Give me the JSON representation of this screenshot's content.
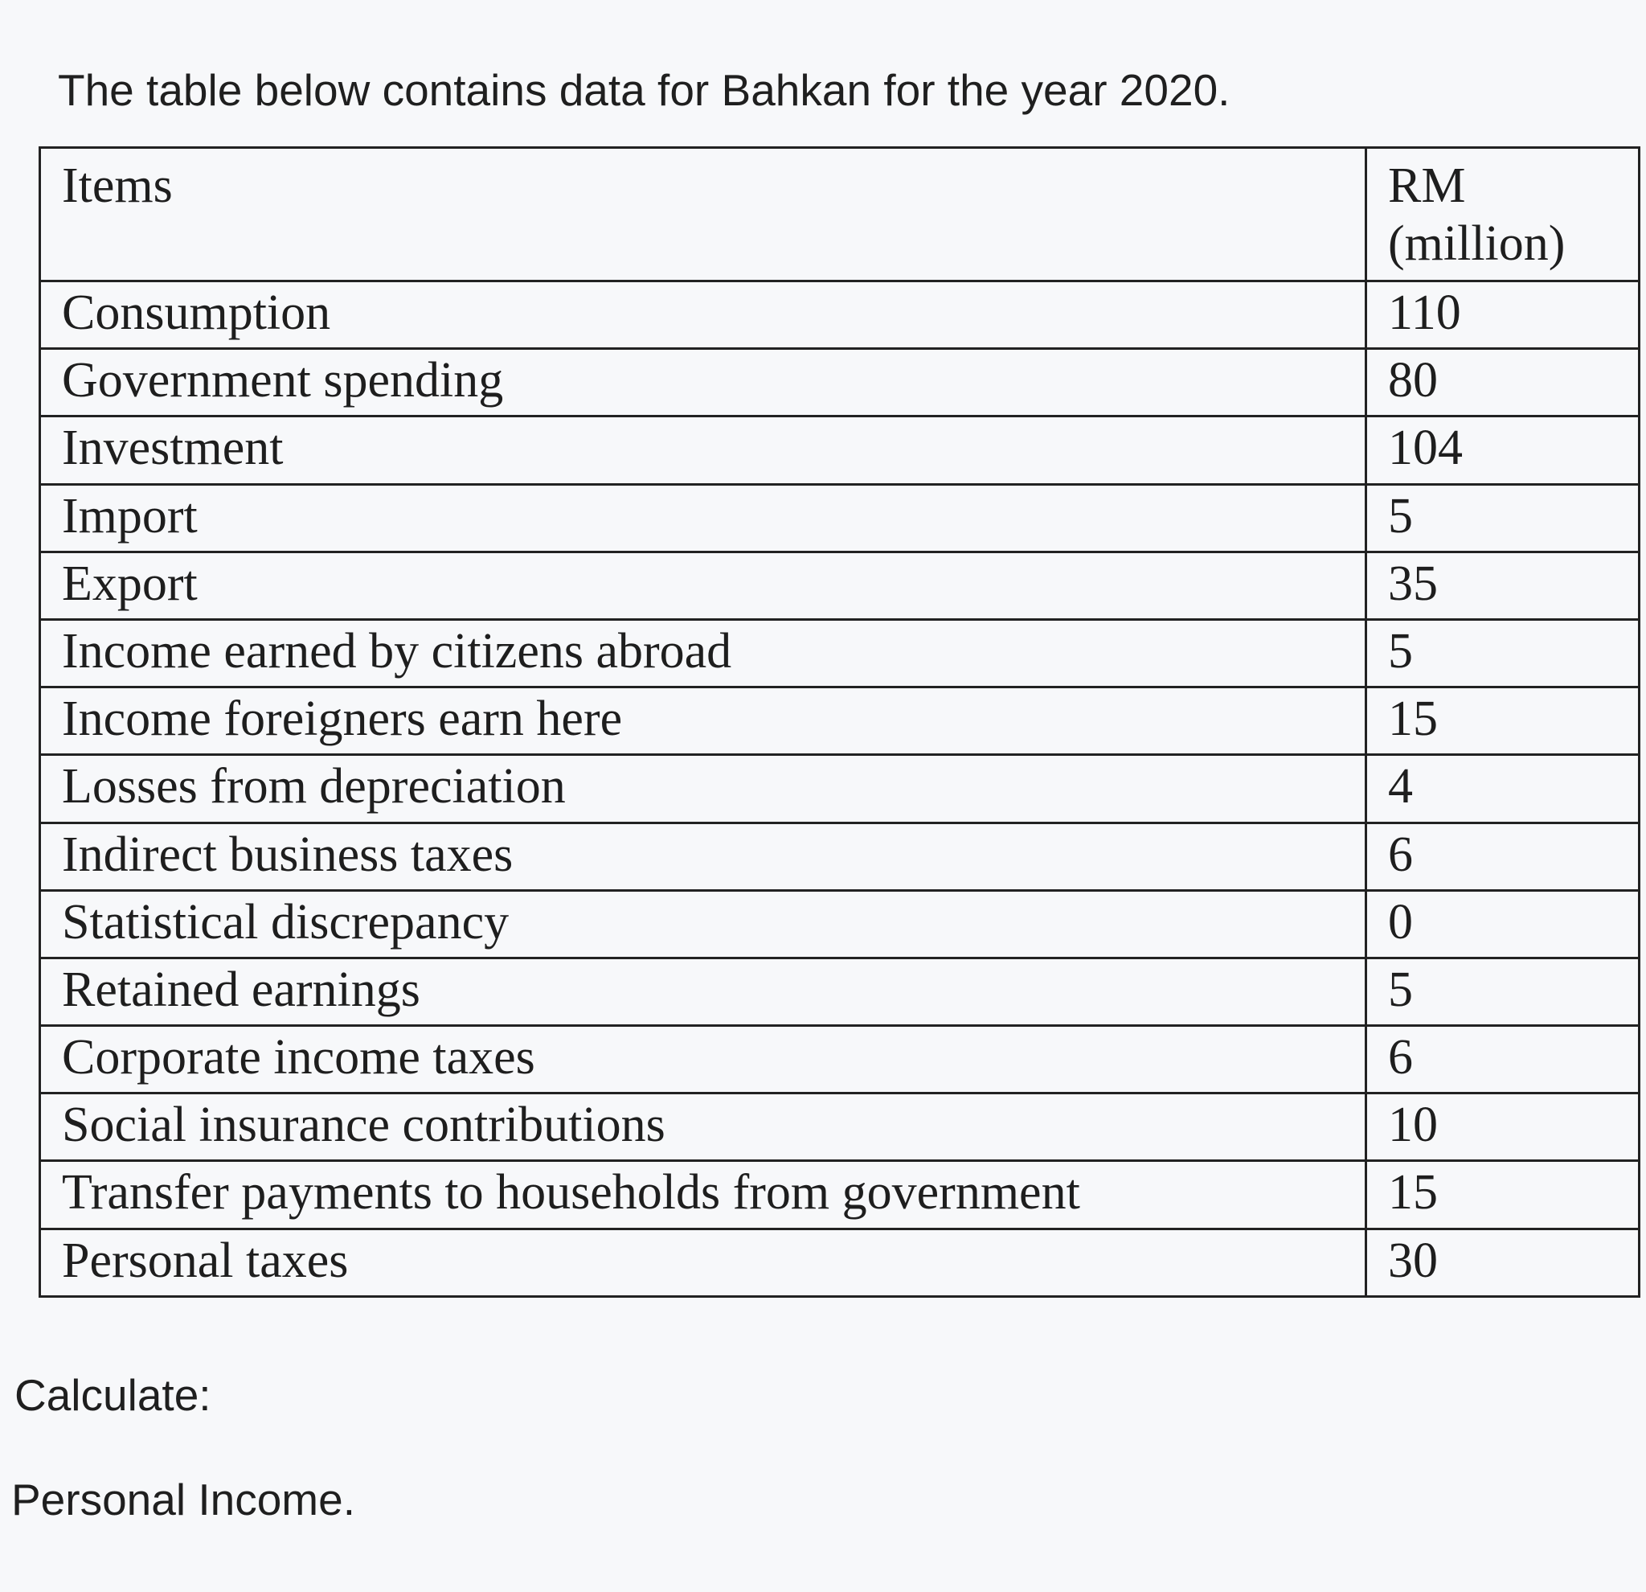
{
  "intro": "The table below contains data for Bahkan for the year 2020.",
  "table": {
    "header": {
      "item": "Items",
      "value_line1": "RM",
      "value_line2": "(million)"
    },
    "rows": [
      {
        "item": "Consumption",
        "value": "110"
      },
      {
        "item": "Government spending",
        "value": "80"
      },
      {
        "item": "Investment",
        "value": "104"
      },
      {
        "item": "Import",
        "value": "5"
      },
      {
        "item": "Export",
        "value": "35"
      },
      {
        "item": "Income earned by citizens abroad",
        "value": "5"
      },
      {
        "item": "Income foreigners earn here",
        "value": "15"
      },
      {
        "item": "Losses from depreciation",
        "value": "4"
      },
      {
        "item": "Indirect business taxes",
        "value": "6"
      },
      {
        "item": "Statistical discrepancy",
        "value": "0"
      },
      {
        "item": "Retained earnings",
        "value": "5"
      },
      {
        "item": "Corporate income taxes",
        "value": "6"
      },
      {
        "item": "Social insurance contributions",
        "value": "10"
      },
      {
        "item": "Transfer payments to households from government",
        "value": "15"
      },
      {
        "item": "Personal taxes",
        "value": "30"
      }
    ]
  },
  "calculate_label": "Calculate:",
  "question": "Personal Income."
}
